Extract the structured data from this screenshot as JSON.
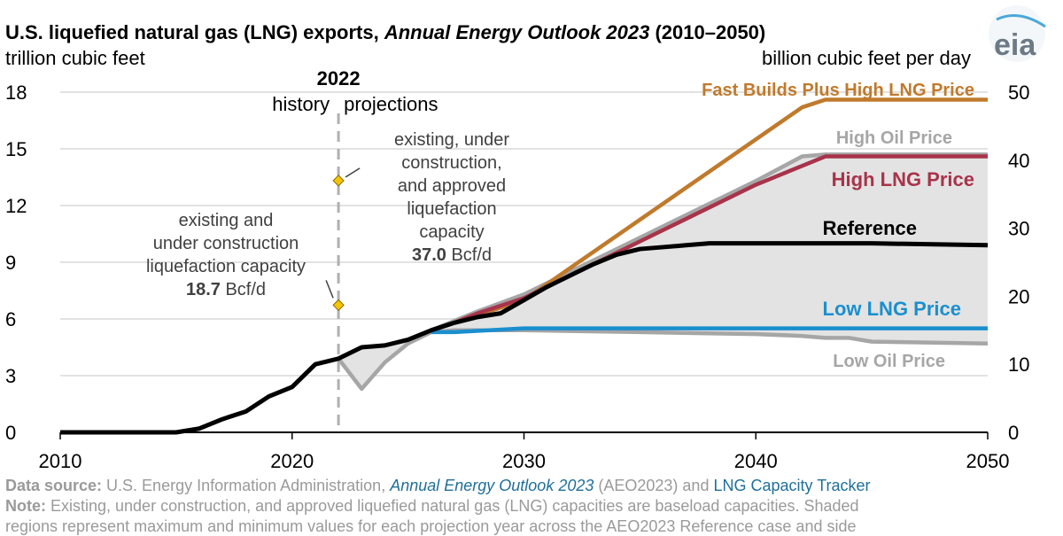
{
  "title_main": "U.S. liquefied natural gas (LNG) exports, ",
  "title_italic": "Annual Energy Outlook 2023",
  "title_tail": " (2010–2050)",
  "logo_text": "eia",
  "footer": {
    "source_label": "Data source:",
    "source_text": " U.S. Energy Information Administration, ",
    "source_link1": "Annual Energy Outlook 2023",
    "source_mid": " (AEO2023) and ",
    "source_link2": "LNG Capacity Tracker",
    "note_label": "Note:",
    "note_text": " Existing, under construction, and approved liquefied natural gas (LNG) capacities are baseload capacities. Shaded",
    "note_line2": "regions represent maximum and minimum values for each projection year across the AEO2023 Reference case and side"
  },
  "chart_data": {
    "type": "line",
    "ylabel_left": "trillion cubic feet",
    "ylabel_right": "billion cubic feet per day",
    "xlim": [
      2010,
      2050
    ],
    "ylim_left": [
      0,
      18
    ],
    "ylim_right": [
      0,
      50
    ],
    "xticks": [
      "2010",
      "2020",
      "2030",
      "2040",
      "2050"
    ],
    "yticks_left": [
      "0",
      "3",
      "6",
      "9",
      "12",
      "15",
      "18"
    ],
    "yticks_right": [
      "0",
      "10",
      "20",
      "30",
      "40",
      "50"
    ],
    "grid": true,
    "divider": {
      "year": 2022,
      "label": "2022",
      "left_label": "history",
      "right_label": "projections"
    },
    "series": [
      {
        "name": "Low Oil Price",
        "color": "#a6a6a6",
        "shade": true,
        "x": [
          2022,
          2023,
          2024,
          2025,
          2026,
          2027,
          2028,
          2030,
          2035,
          2040,
          2042,
          2043,
          2044,
          2045,
          2050
        ],
        "y": [
          3.9,
          2.3,
          3.7,
          4.7,
          5.3,
          5.4,
          5.4,
          5.4,
          5.3,
          5.2,
          5.1,
          5.0,
          5.0,
          4.8,
          4.7
        ]
      },
      {
        "name": "High Oil Price",
        "color": "#a6a6a6",
        "shade": true,
        "x": [
          2022,
          2023,
          2024,
          2025,
          2026,
          2027,
          2028,
          2030,
          2035,
          2040,
          2042,
          2043,
          2050
        ],
        "y": [
          3.9,
          4.5,
          4.6,
          4.9,
          5.4,
          5.9,
          6.4,
          7.3,
          10.3,
          13.3,
          14.6,
          14.7,
          14.7
        ]
      },
      {
        "name": "Fast Builds Plus High LNG Price",
        "color": "#c07a2c",
        "shade": false,
        "x": [
          2026,
          2027,
          2030,
          2042,
          2043,
          2050
        ],
        "y": [
          5.4,
          5.8,
          7.0,
          17.2,
          17.6,
          17.6
        ]
      },
      {
        "name": "High LNG Price",
        "color": "#a8334a",
        "shade": true,
        "x": [
          2026,
          2027,
          2028,
          2030,
          2035,
          2040,
          2043,
          2050
        ],
        "y": [
          5.4,
          5.8,
          6.3,
          7.1,
          10.1,
          13.1,
          14.6,
          14.6
        ]
      },
      {
        "name": "Low LNG Price",
        "color": "#1a8fcf",
        "shade": true,
        "x": [
          2026,
          2027,
          2030,
          2035,
          2040,
          2050
        ],
        "y": [
          5.3,
          5.3,
          5.5,
          5.5,
          5.5,
          5.5
        ]
      },
      {
        "name": "Reference",
        "color": "#000000",
        "shade": true,
        "x": [
          2010,
          2011,
          2012,
          2013,
          2014,
          2015,
          2016,
          2017,
          2018,
          2019,
          2020,
          2021,
          2022,
          2023,
          2024,
          2025,
          2026,
          2027,
          2028,
          2029,
          2030,
          2031,
          2032,
          2033,
          2034,
          2035,
          2036,
          2037,
          2038,
          2040,
          2045,
          2050
        ],
        "y": [
          0,
          0,
          0,
          0,
          0,
          0,
          0.2,
          0.7,
          1.1,
          1.9,
          2.4,
          3.6,
          3.9,
          4.5,
          4.6,
          4.9,
          5.4,
          5.8,
          6.1,
          6.3,
          7.0,
          7.7,
          8.3,
          8.9,
          9.4,
          9.7,
          9.8,
          9.9,
          10.0,
          10.0,
          10.0,
          9.9
        ]
      }
    ],
    "series_labels": [
      {
        "text": "Fast Builds Plus High LNG Price",
        "color": "#c07a2c"
      },
      {
        "text": "High Oil Price",
        "color": "#a6a6a6"
      },
      {
        "text": "High LNG Price",
        "color": "#a8334a"
      },
      {
        "text": "Reference",
        "color": "#000000"
      },
      {
        "text": "Low LNG Price",
        "color": "#1a8fcf"
      },
      {
        "text": "Low Oil Price",
        "color": "#a6a6a6"
      }
    ],
    "annotations": [
      {
        "year": 2022,
        "value_bcfd": 18.7,
        "color": "#f5c400",
        "lines": [
          "existing and",
          "under construction",
          "liquefaction capacity"
        ],
        "value_text": "18.7",
        "unit_text": " Bcf/d"
      },
      {
        "year": 2022,
        "value_bcfd": 37.0,
        "color": "#f5c400",
        "lines": [
          "existing, under",
          "construction,",
          "and approved",
          "liquefaction",
          "capacity"
        ],
        "value_text": "37.0",
        "unit_text": " Bcf/d"
      }
    ]
  }
}
